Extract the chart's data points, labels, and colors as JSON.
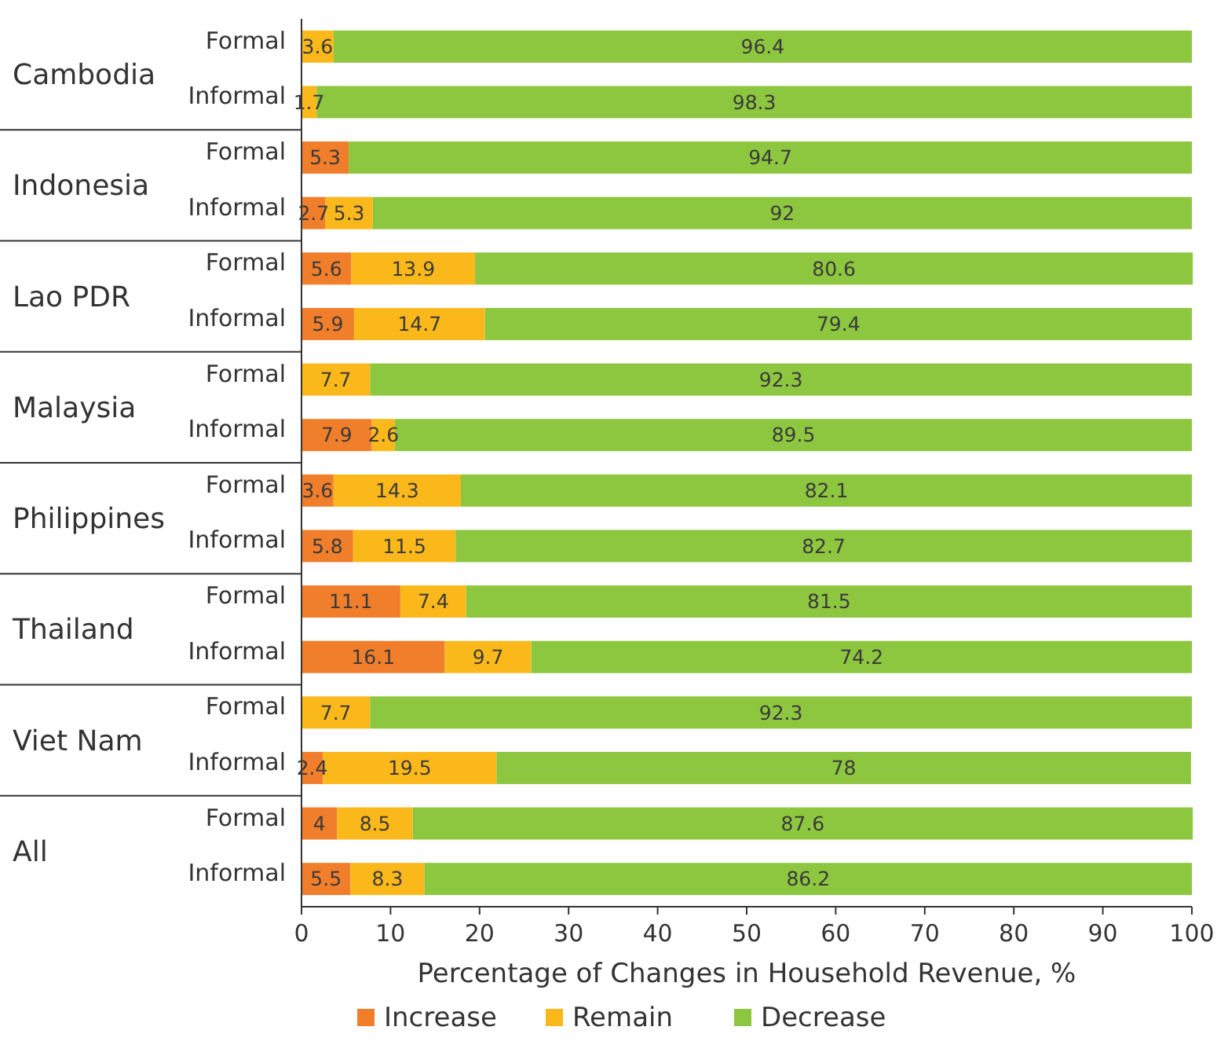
{
  "chart_data": {
    "type": "bar",
    "orientation": "horizontal",
    "stacked": true,
    "categories": [
      "Formal",
      "Informal",
      "Formal",
      "Informal",
      "Formal",
      "Informal",
      "Formal",
      "Informal",
      "Formal",
      "Informal",
      "Formal",
      "Informal",
      "Formal",
      "Informal",
      "Formal",
      "Informal"
    ],
    "annotations": [
      "Cambodia",
      "Indonesia",
      "Lao PDR",
      "Malaysia",
      "Philippines",
      "Thailand",
      "Viet Nam",
      "All"
    ],
    "series": [
      {
        "name": "Increase",
        "color": "#f07e2b",
        "values": [
          null,
          null,
          5.3,
          2.7,
          5.6,
          5.9,
          null,
          7.9,
          3.6,
          5.8,
          11.1,
          16.1,
          null,
          2.4,
          4,
          5.5
        ]
      },
      {
        "name": "Remain",
        "color": "#fbb81b",
        "values": [
          3.6,
          1.7,
          null,
          5.3,
          13.9,
          14.7,
          7.7,
          2.6,
          14.3,
          11.5,
          7.4,
          9.7,
          7.7,
          19.5,
          8.5,
          8.3
        ]
      },
      {
        "name": "Decrease",
        "color": "#8dc63f",
        "values": [
          96.4,
          98.3,
          94.7,
          92,
          80.6,
          79.4,
          92.3,
          89.5,
          82.1,
          82.7,
          81.5,
          74.2,
          92.3,
          78,
          87.6,
          86.2
        ]
      }
    ],
    "xlim": [
      0,
      100
    ],
    "xticks": [
      0,
      10,
      20,
      30,
      40,
      50,
      60,
      70,
      80,
      90,
      100
    ],
    "xlabel": "Percentage of Changes in Household Revenue, %",
    "data_labels": true,
    "legend": "bottom",
    "grid": false
  }
}
